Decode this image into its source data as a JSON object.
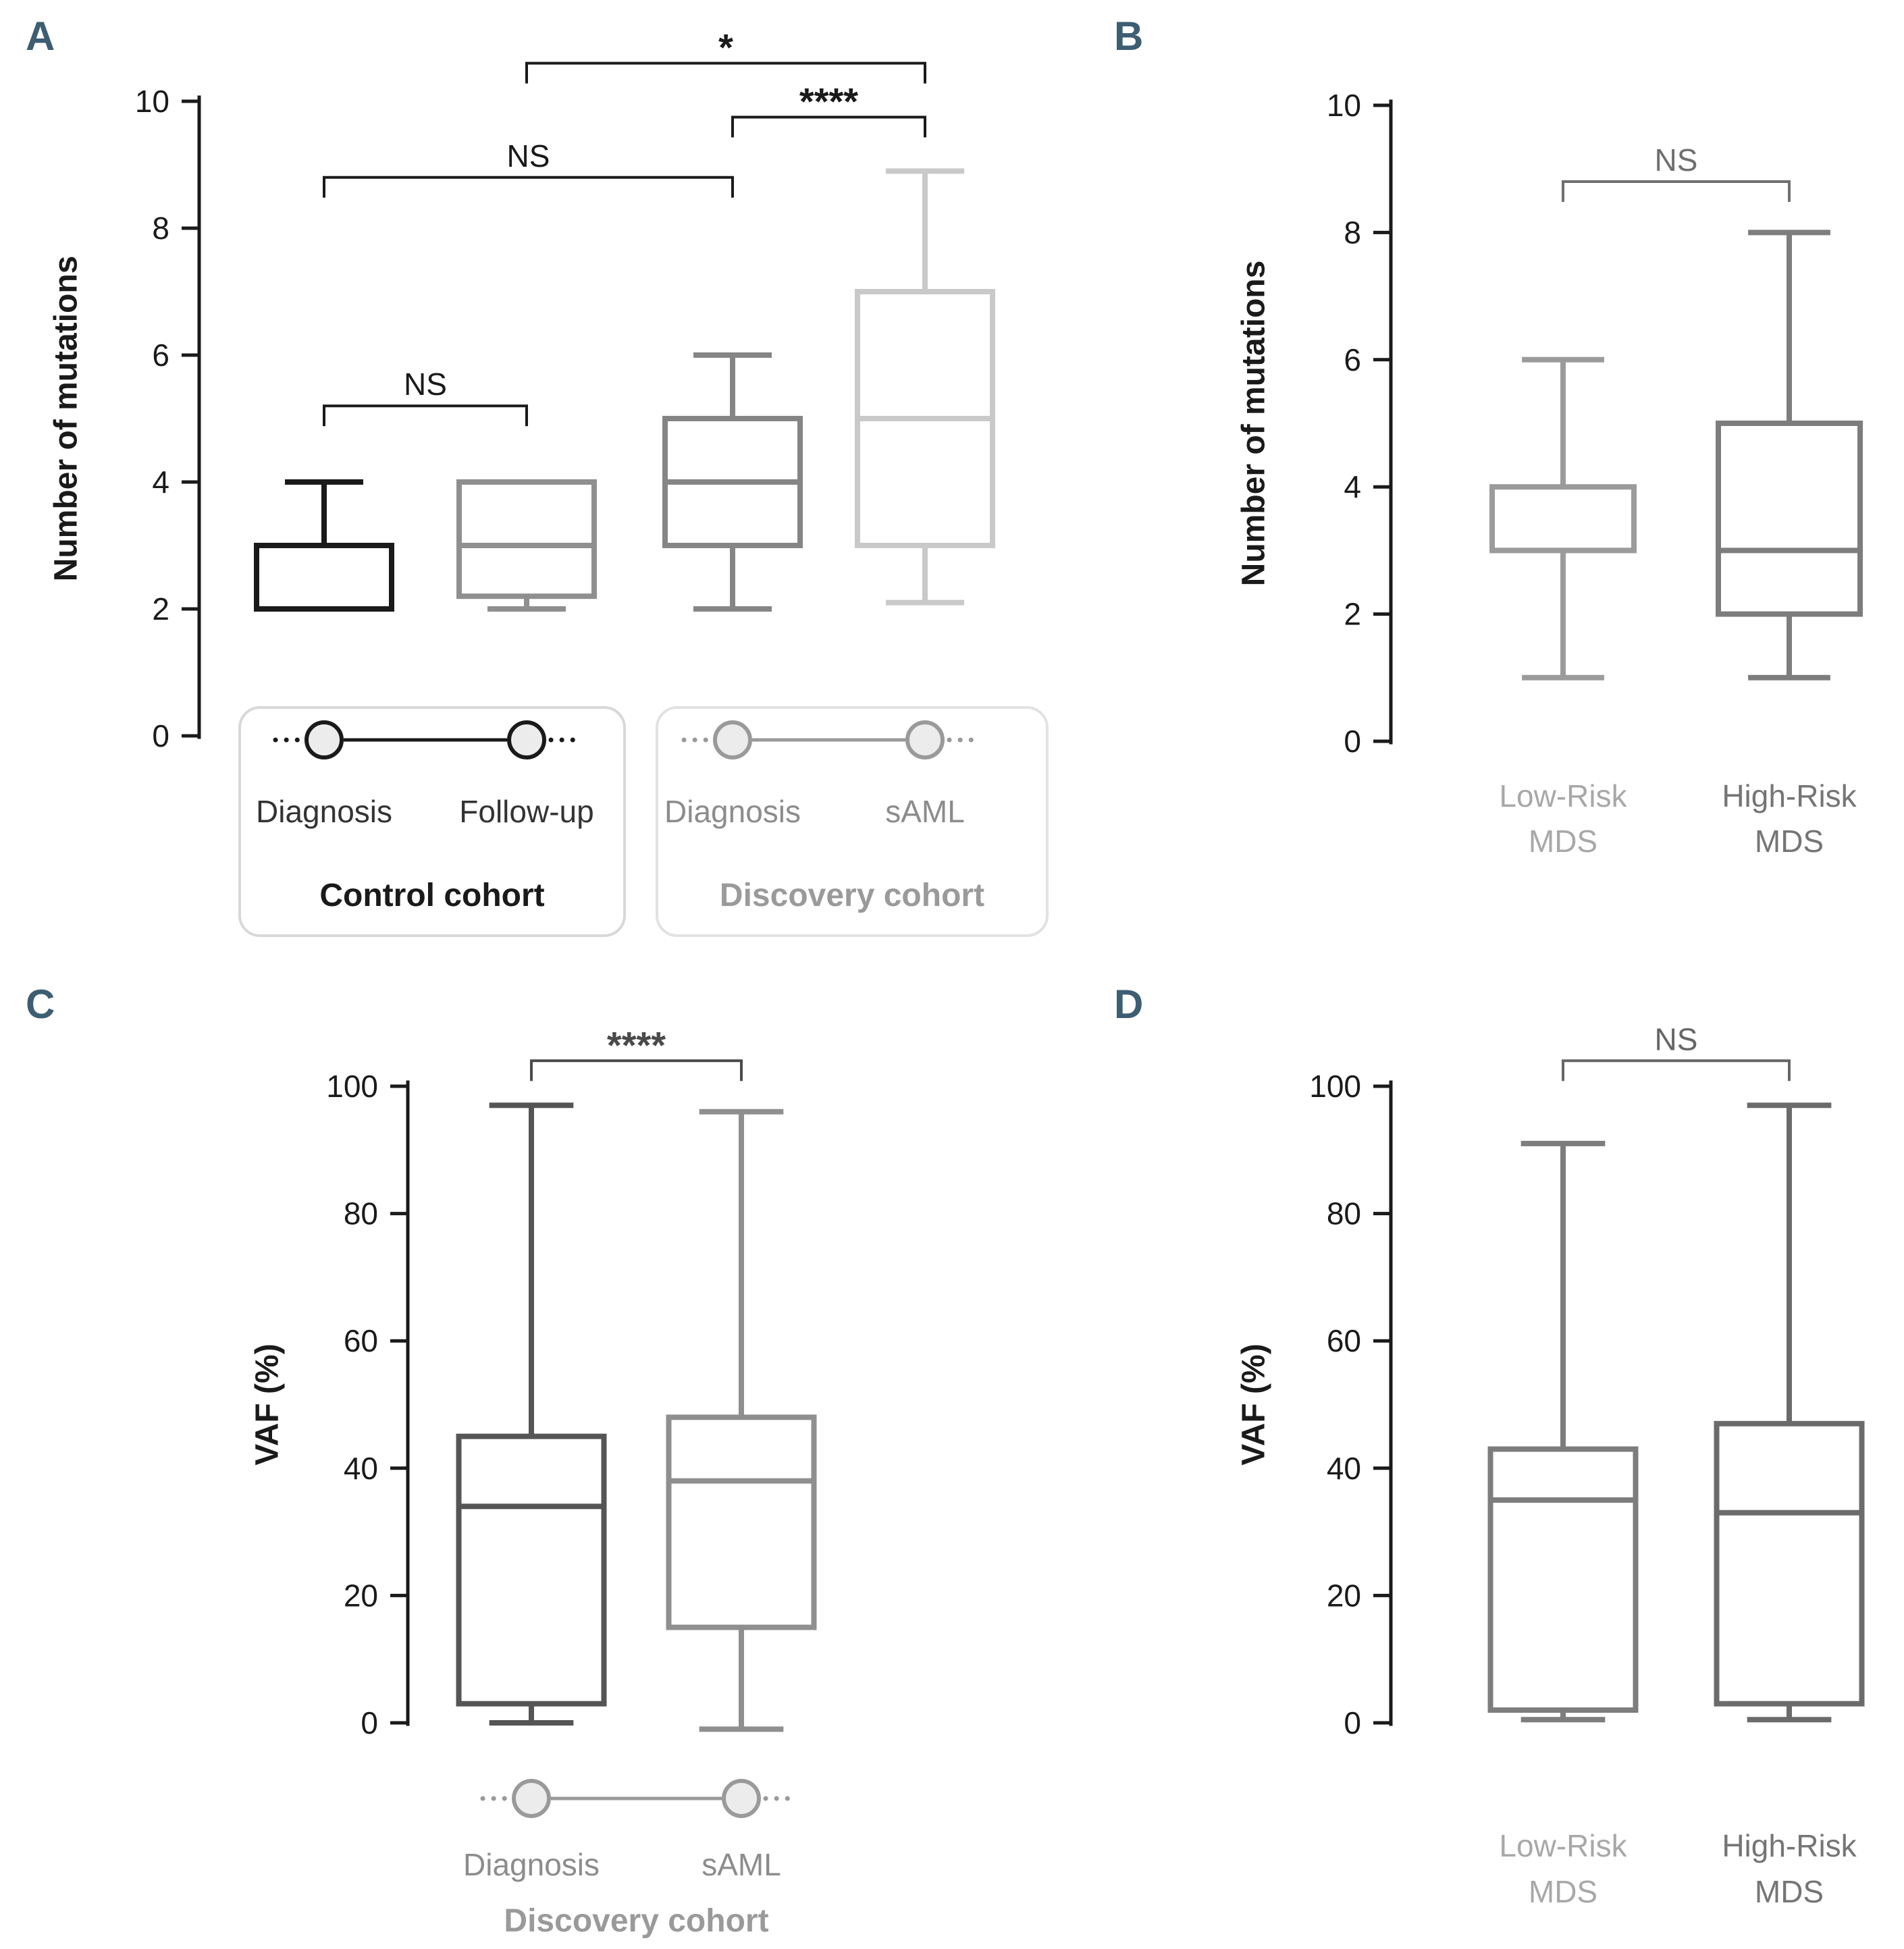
{
  "figure": {
    "background": "#ffffff",
    "panel_letter_color": "#3d5d73",
    "axis_color": "#1a1a1a"
  },
  "chart_data": [
    {
      "type": "box",
      "panel": "A",
      "ylabel": "Number of mutations",
      "ylim": [
        0,
        10
      ],
      "yticks": [
        0,
        2,
        4,
        6,
        8,
        10
      ],
      "boxes": [
        {
          "label": "Diagnosis",
          "group": "Control cohort",
          "color": "#1a1a1a",
          "whisker_low": 2,
          "q1": 2,
          "median": 3,
          "q3": 3,
          "whisker_high": 4
        },
        {
          "label": "Follow-up",
          "group": "Control cohort",
          "color": "#8f8f8f",
          "whisker_low": 2,
          "q1": 2.2,
          "median": 3,
          "q3": 4,
          "whisker_high": 4
        },
        {
          "label": "Diagnosis",
          "group": "Discovery cohort",
          "color": "#858585",
          "whisker_low": 2,
          "q1": 3,
          "median": 4,
          "q3": 5,
          "whisker_high": 6
        },
        {
          "label": "sAML",
          "group": "Discovery cohort",
          "color": "#c9c9c9",
          "whisker_low": 2.1,
          "q1": 3,
          "median": 5,
          "q3": 7,
          "whisker_high": 8.9
        }
      ],
      "significance": [
        {
          "between": [
            0,
            1
          ],
          "label": "NS",
          "y": 5.2
        },
        {
          "between": [
            0,
            2
          ],
          "label": "NS",
          "y": 8.8
        },
        {
          "between": [
            2,
            3
          ],
          "label": "****",
          "y": 9.75
        },
        {
          "between": [
            1,
            3
          ],
          "label": "*",
          "y": 10.6
        }
      ],
      "sig_color": "#1a1a1a",
      "legend_groups": [
        {
          "title": "Control cohort",
          "items": [
            "Diagnosis",
            "Follow-up"
          ],
          "accent": "#1a1a1a",
          "item_color": "#333333",
          "title_color": "#1a1a1a",
          "border": "#d8d8d8"
        },
        {
          "title": "Discovery cohort",
          "items": [
            "Diagnosis",
            "sAML"
          ],
          "accent": "#9a9a9a",
          "item_color": "#8c8c8c",
          "title_color": "#9a9a9a",
          "border": "#e2e2e2"
        }
      ]
    },
    {
      "type": "box",
      "panel": "B",
      "ylabel": "Number of mutations",
      "ylim": [
        0,
        10
      ],
      "yticks": [
        0,
        2,
        4,
        6,
        8,
        10
      ],
      "boxes": [
        {
          "label": "Low-Risk MDS",
          "color": "#9b9b9b",
          "whisker_low": 1,
          "q1": 3,
          "median": 3,
          "q3": 4,
          "whisker_high": 6
        },
        {
          "label": "High-Risk MDS",
          "color": "#7d7d7d",
          "whisker_low": 1,
          "q1": 2,
          "median": 3,
          "q3": 5,
          "whisker_high": 8
        }
      ],
      "categories": [
        {
          "lines": [
            "Low-Risk",
            "MDS"
          ],
          "color": "#a8a8a8"
        },
        {
          "lines": [
            "High-Risk",
            "MDS"
          ],
          "color": "#757575"
        }
      ],
      "significance": [
        {
          "between": [
            0,
            1
          ],
          "label": "NS",
          "y": 8.8
        }
      ],
      "sig_color": "#6f6f6f"
    },
    {
      "type": "box",
      "panel": "C",
      "ylabel": "VAF (%)",
      "ylim": [
        0,
        100
      ],
      "yticks": [
        0,
        20,
        40,
        60,
        80,
        100
      ],
      "boxes": [
        {
          "label": "Diagnosis",
          "group": "Discovery cohort",
          "color": "#555555",
          "whisker_low": 0,
          "q1": 3,
          "median": 34,
          "q3": 45,
          "whisker_high": 97
        },
        {
          "label": "sAML",
          "group": "Discovery cohort",
          "color": "#8f8f8f",
          "whisker_low": -1,
          "q1": 15,
          "median": 38,
          "q3": 48,
          "whisker_high": 96
        }
      ],
      "significance": [
        {
          "between": [
            0,
            1
          ],
          "label": "****",
          "y": 104
        }
      ],
      "sig_color": "#4a4a4a",
      "legend_groups": [
        {
          "title": "Discovery cohort",
          "items": [
            "Diagnosis",
            "sAML"
          ],
          "accent": "#9a9a9a",
          "item_color": "#8c8c8c",
          "title_color": "#9a9a9a",
          "border": null
        }
      ]
    },
    {
      "type": "box",
      "panel": "D",
      "ylabel": "VAF (%)",
      "ylim": [
        0,
        100
      ],
      "yticks": [
        0,
        20,
        40,
        60,
        80,
        100
      ],
      "boxes": [
        {
          "label": "Low-Risk MDS",
          "color": "#7d7d7d",
          "whisker_low": 0.5,
          "q1": 2,
          "median": 35,
          "q3": 43,
          "whisker_high": 91
        },
        {
          "label": "High-Risk MDS",
          "color": "#6b6b6b",
          "whisker_low": 0.5,
          "q1": 3,
          "median": 33,
          "q3": 47,
          "whisker_high": 97
        }
      ],
      "categories": [
        {
          "lines": [
            "Low-Risk",
            "MDS"
          ],
          "color": "#a8a8a8"
        },
        {
          "lines": [
            "High-Risk",
            "MDS"
          ],
          "color": "#757575"
        }
      ],
      "significance": [
        {
          "between": [
            0,
            1
          ],
          "label": "NS",
          "y": 104
        }
      ],
      "sig_color": "#666666"
    }
  ]
}
